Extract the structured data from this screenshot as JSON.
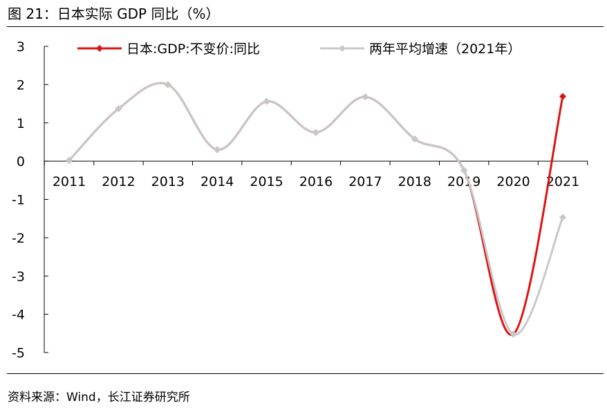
{
  "header": {
    "title": "图 21：日本实际 GDP 同比（%）"
  },
  "footer": {
    "source": "资料来源：Wind，长江证券研究所"
  },
  "chart_data": {
    "type": "line",
    "title": "图 21：日本实际 GDP 同比（%）",
    "xlabel": "",
    "ylabel": "",
    "categories": [
      "2011",
      "2012",
      "2013",
      "2014",
      "2015",
      "2016",
      "2017",
      "2018",
      "2019",
      "2020",
      "2021"
    ],
    "ylim": [
      -5,
      3
    ],
    "yticks": [
      3,
      2,
      1,
      0,
      -1,
      -2,
      -3,
      -4,
      -5
    ],
    "grid": false,
    "legend_position": "top",
    "series": [
      {
        "name": "日本:GDP:不变价:同比",
        "color": "#E01010",
        "marker": "diamond",
        "values": [
          0.02,
          1.37,
          2.0,
          0.3,
          1.56,
          0.75,
          1.68,
          0.58,
          -0.24,
          -4.52,
          1.69
        ]
      },
      {
        "name": "两年平均增速（2021年）",
        "color": "#C8C8C8",
        "marker": "diamond",
        "values": [
          0.02,
          1.37,
          2.0,
          0.3,
          1.56,
          0.75,
          1.68,
          0.58,
          -0.24,
          -4.52,
          -1.47
        ]
      }
    ]
  }
}
